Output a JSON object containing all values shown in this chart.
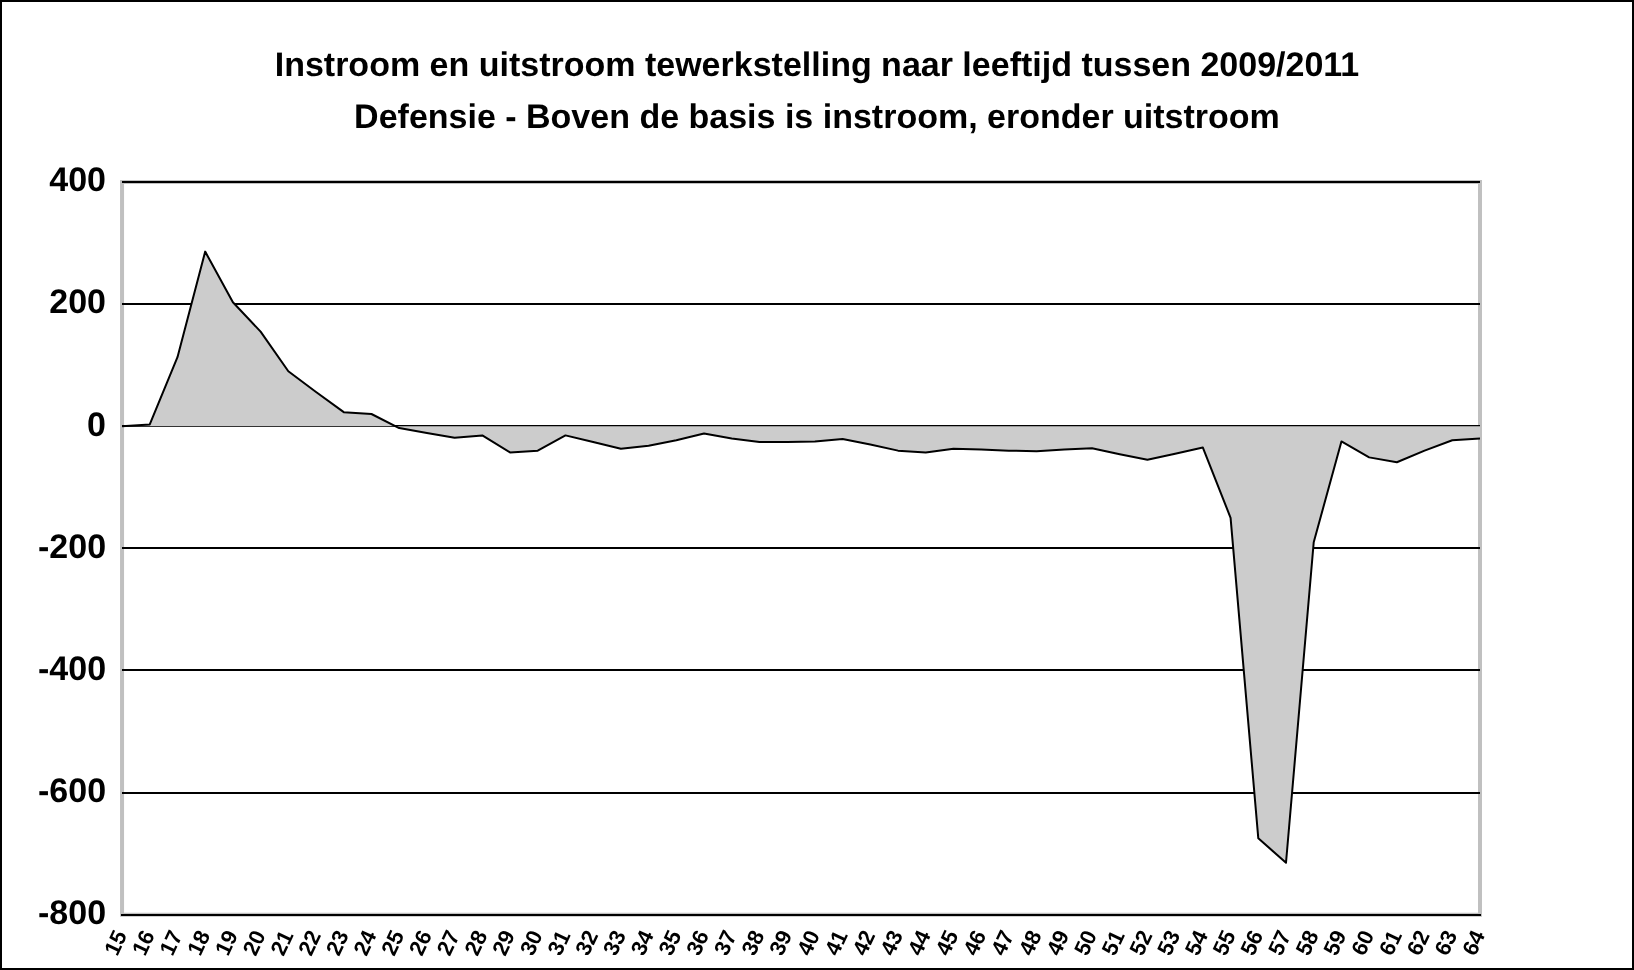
{
  "chart_data": {
    "type": "area",
    "title": "Instroom en uitstroom tewerkstelling naar leeftijd tussen 2009/2011",
    "subtitle": "Defensie - Boven de basis is instroom, eronder uitstroom",
    "categories": [
      "15",
      "16",
      "17",
      "18",
      "19",
      "20",
      "21",
      "22",
      "23",
      "24",
      "25",
      "26",
      "27",
      "28",
      "29",
      "30",
      "31",
      "32",
      "33",
      "34",
      "35",
      "36",
      "37",
      "38",
      "39",
      "40",
      "41",
      "42",
      "43",
      "44",
      "45",
      "46",
      "47",
      "48",
      "49",
      "50",
      "51",
      "52",
      "53",
      "54",
      "55",
      "56",
      "57",
      "58",
      "59",
      "60",
      "61",
      "62",
      "63",
      "64"
    ],
    "series": [
      {
        "color": "#cccccc",
        "values": [
          0,
          3,
          113,
          286,
          203,
          155,
          90,
          56,
          23,
          20,
          -3,
          -11,
          -19,
          -15,
          -43,
          -40,
          -15,
          -26,
          -37,
          -32,
          -23,
          -12,
          -20,
          -26,
          -26,
          -25,
          -21,
          -30,
          -40,
          -43,
          -37,
          -38,
          -40,
          -41,
          -38,
          -36,
          -46,
          -55,
          -45,
          -35,
          -150,
          -675,
          -715,
          -190,
          -25,
          -51,
          -59,
          -40,
          -23,
          -20
        ]
      }
    ],
    "ylim": [
      -800,
      400
    ],
    "yticks": [
      -800,
      -600,
      -400,
      -200,
      0,
      200,
      400
    ],
    "grid": "y",
    "legend": false
  }
}
